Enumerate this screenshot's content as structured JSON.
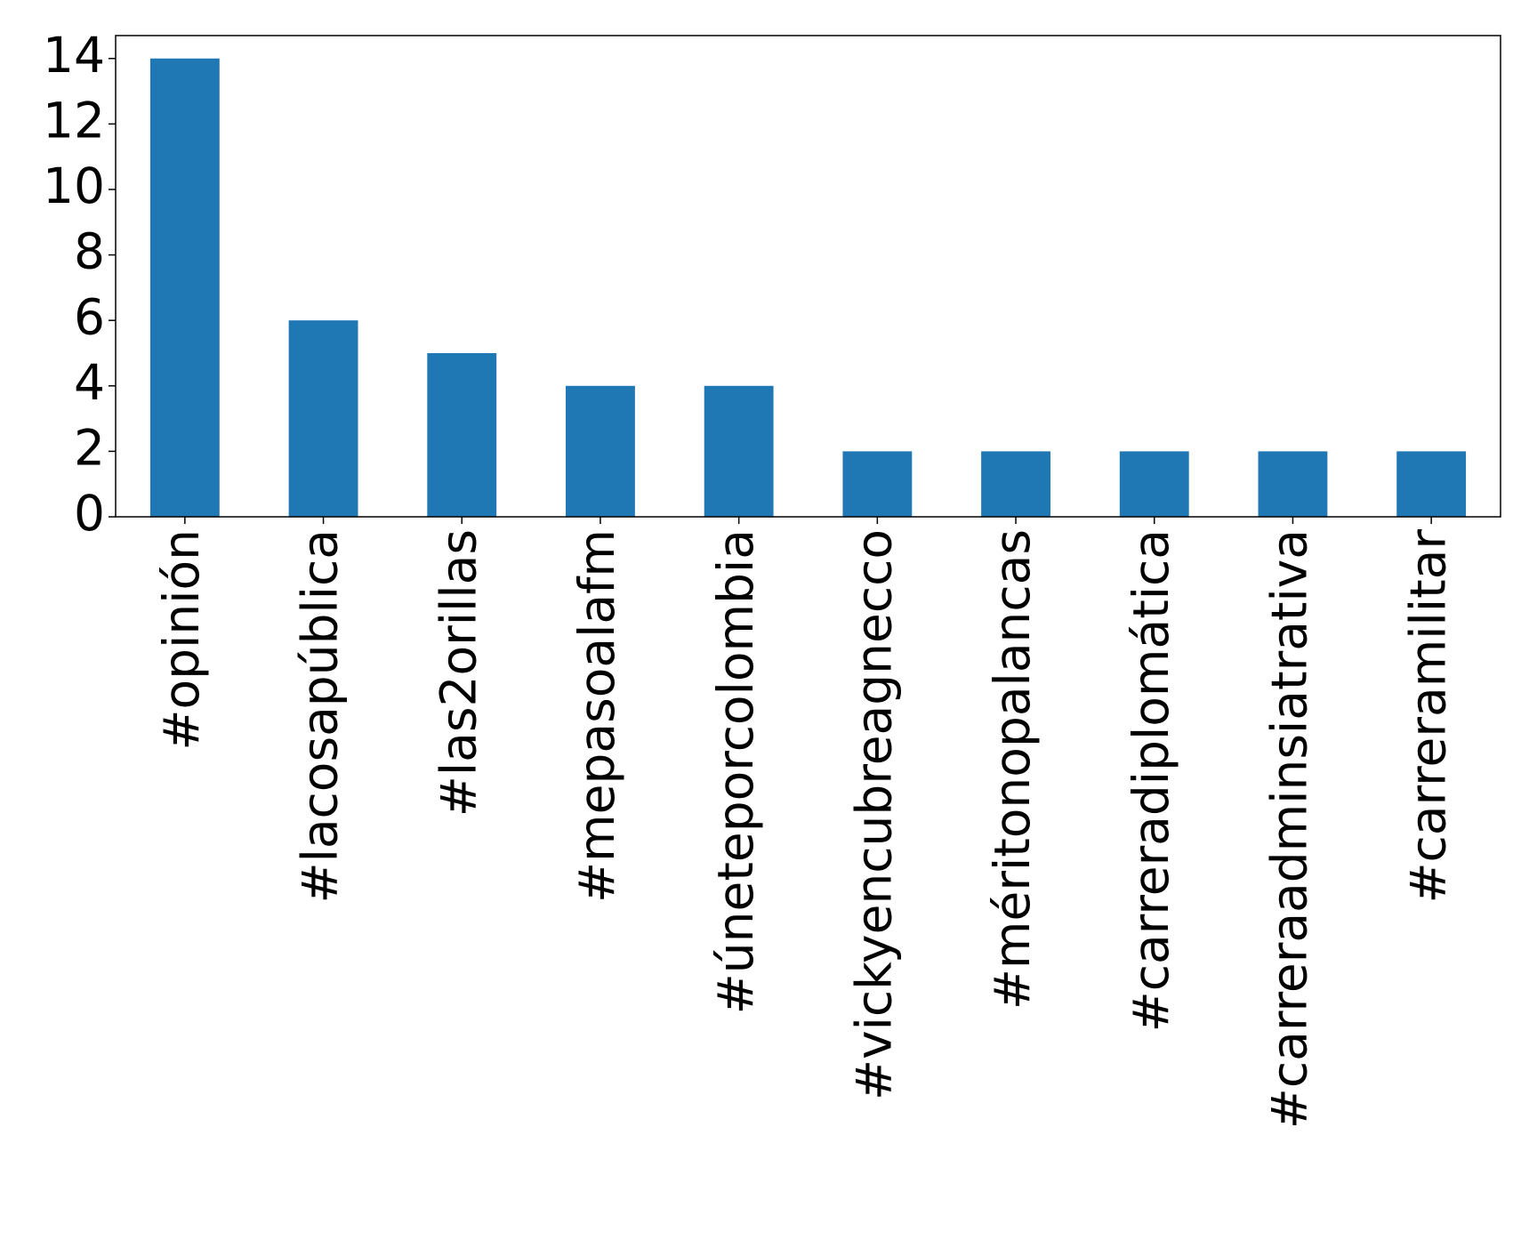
{
  "chart_data": {
    "type": "bar",
    "categories": [
      "#opinión",
      "#lacosapública",
      "#las2orillas",
      "#mepasoalafm",
      "#úneteporcolombia",
      "#vickyencubreagnecco",
      "#méritonopalancas",
      "#carreradiplomática",
      "#carreraadminsiatrativa",
      "#carreramilitar"
    ],
    "values": [
      14,
      6,
      5,
      4,
      4,
      2,
      2,
      2,
      2,
      2
    ],
    "color": "#1f77b4",
    "ylim": [
      0,
      14.7
    ],
    "yticks": [
      0,
      2,
      4,
      6,
      8,
      10,
      12,
      14
    ],
    "grid": false
  }
}
